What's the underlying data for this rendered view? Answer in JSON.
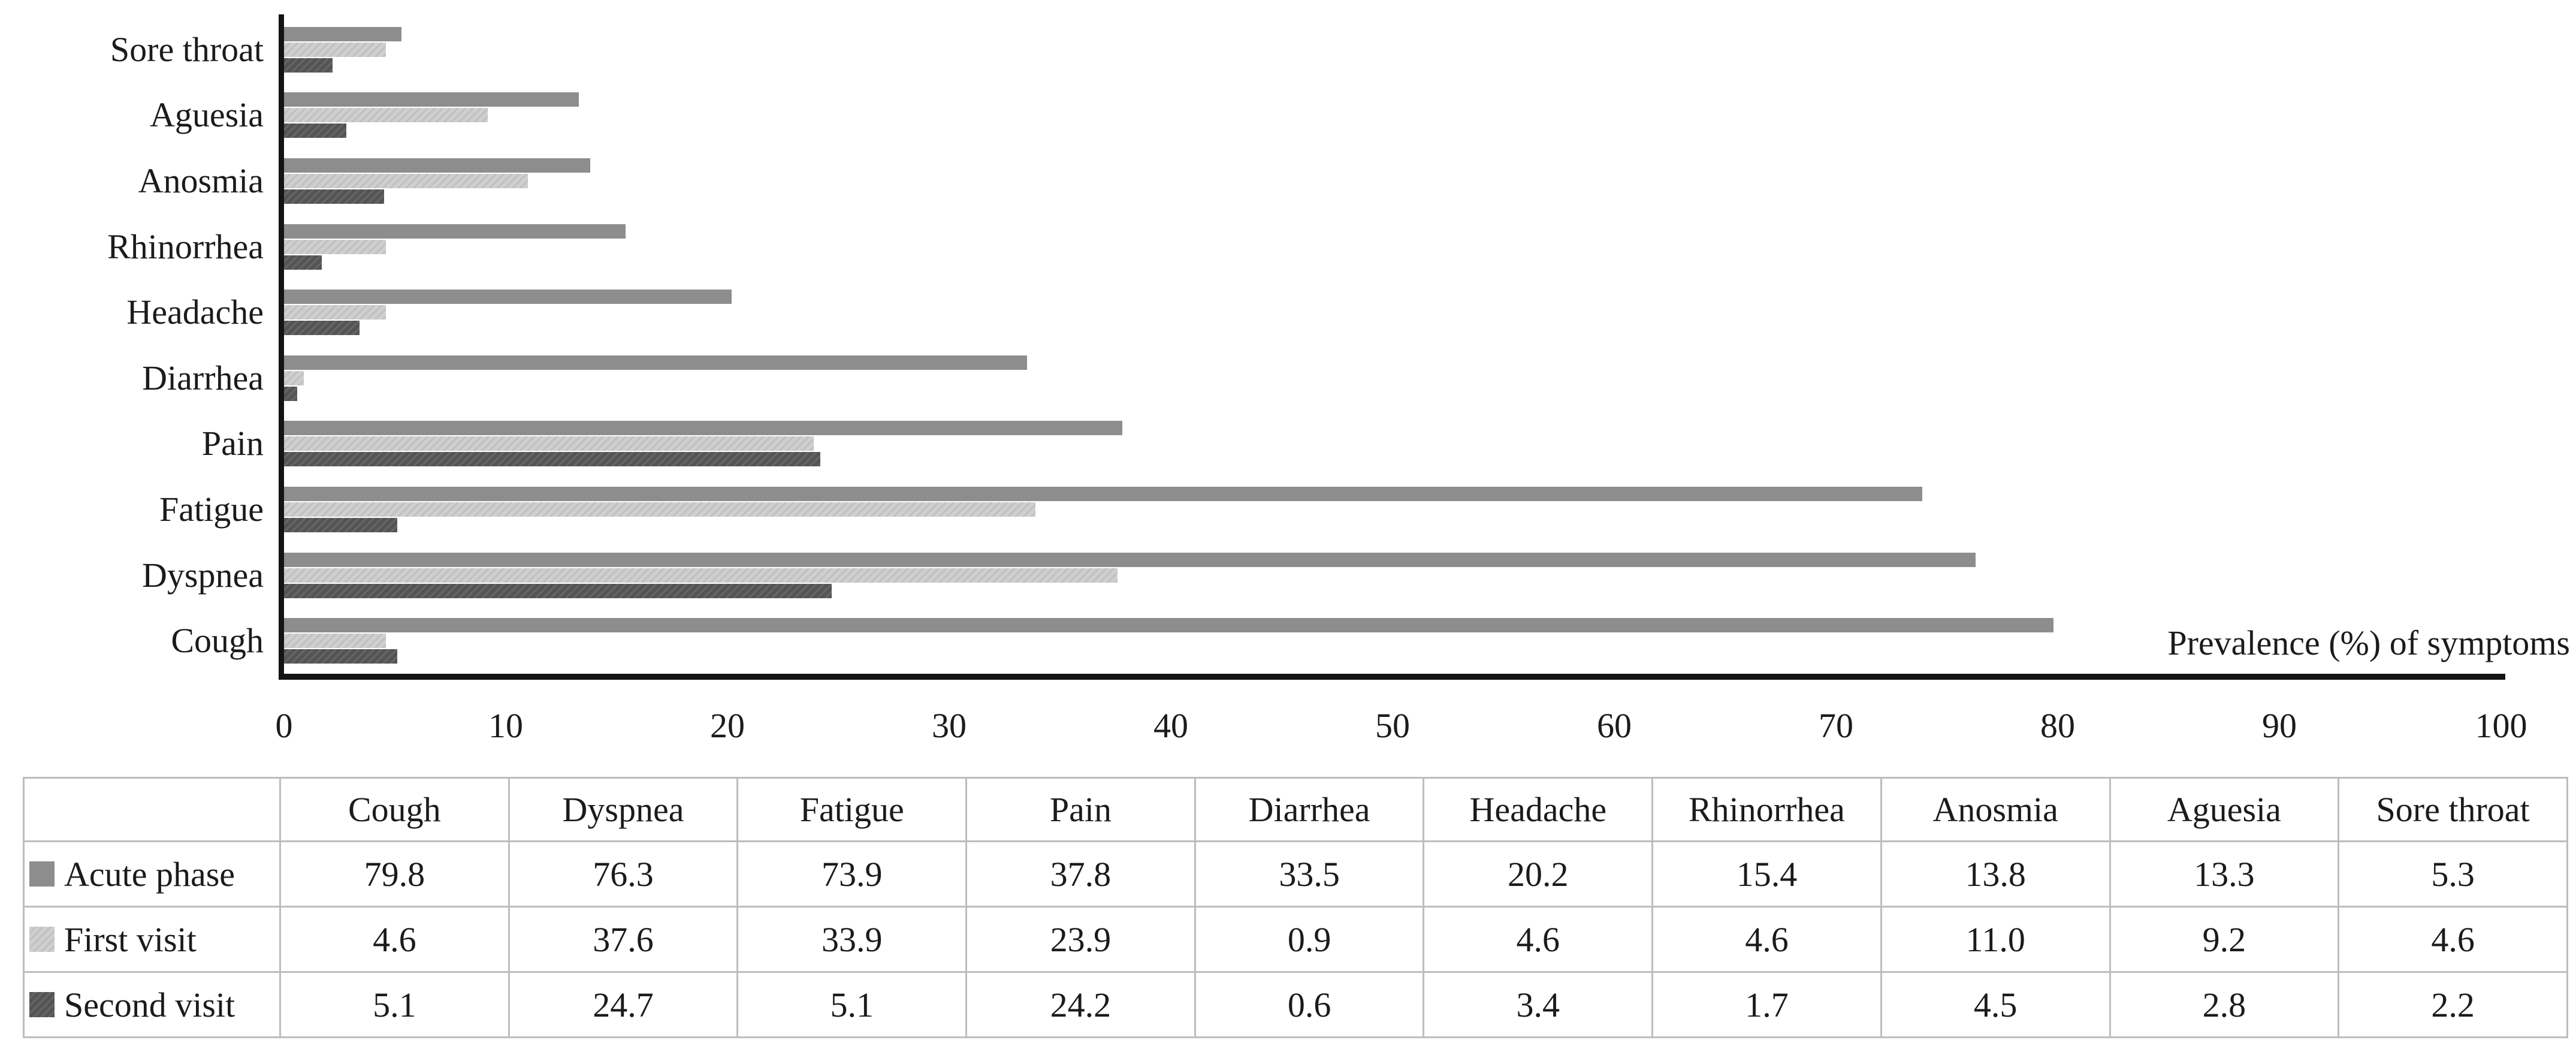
{
  "chart_data": {
    "type": "bar",
    "orientation": "horizontal",
    "axis_title": "Prevalence (%) of symptoms",
    "x_axis": {
      "min": 0,
      "max": 100,
      "tick_step": 10,
      "tick_labels": [
        "0",
        "10",
        "20",
        "30",
        "40",
        "50",
        "60",
        "70",
        "80",
        "90",
        "100"
      ]
    },
    "grid": "off",
    "categories_top_to_bottom": [
      "Sore throat",
      "Aguesia",
      "Anosmia",
      "Rhinorrhea",
      "Headache",
      "Diarrhea",
      "Pain",
      "Fatigue",
      "Dyspnea",
      "Cough"
    ],
    "series": [
      {
        "name": "Acute phase",
        "key": "acute-phase",
        "color": "#8d8d8d",
        "hatch_color": null,
        "values": [
          5.3,
          13.3,
          13.8,
          15.4,
          20.2,
          33.5,
          37.8,
          73.9,
          76.3,
          79.8
        ]
      },
      {
        "name": "First visit",
        "key": "first-visit",
        "color": "#cfcfcf",
        "hatch_color": "#c0c0c0",
        "values": [
          4.6,
          9.2,
          11.0,
          4.6,
          4.6,
          0.9,
          23.9,
          33.9,
          37.6,
          4.6
        ]
      },
      {
        "name": "Second visit",
        "key": "second-visit",
        "color": "#545454",
        "hatch_color": "#666666",
        "values": [
          2.2,
          2.8,
          4.5,
          1.7,
          3.4,
          0.6,
          24.2,
          5.1,
          24.7,
          5.1
        ]
      }
    ]
  },
  "table": {
    "columns": [
      "Cough",
      "Dyspnea",
      "Fatigue",
      "Pain",
      "Diarrhea",
      "Headache",
      "Rhinorrhea",
      "Anosmia",
      "Aguesia",
      "Sore throat"
    ],
    "rows": [
      {
        "label": "Acute phase",
        "swatch_color": "#8d8d8d",
        "swatch_hatch": null,
        "values": [
          "79.8",
          "76.3",
          "73.9",
          "37.8",
          "33.5",
          "20.2",
          "15.4",
          "13.8",
          "13.3",
          "5.3"
        ]
      },
      {
        "label": "First visit",
        "swatch_color": "#cfcfcf",
        "swatch_hatch": "#c0c0c0",
        "values": [
          "4.6",
          "37.6",
          "33.9",
          "23.9",
          "0.9",
          "4.6",
          "4.6",
          "11.0",
          "9.2",
          "4.6"
        ]
      },
      {
        "label": "Second visit",
        "swatch_color": "#545454",
        "swatch_hatch": "#666666",
        "values": [
          "5.1",
          "24.7",
          "5.1",
          "24.2",
          "0.6",
          "3.4",
          "1.7",
          "4.5",
          "2.8",
          "2.2"
        ]
      }
    ]
  },
  "colors": {
    "axis": "#141414",
    "table_border": "#bdbdbd",
    "text": "#1b1b1b",
    "background": "#ffffff"
  }
}
